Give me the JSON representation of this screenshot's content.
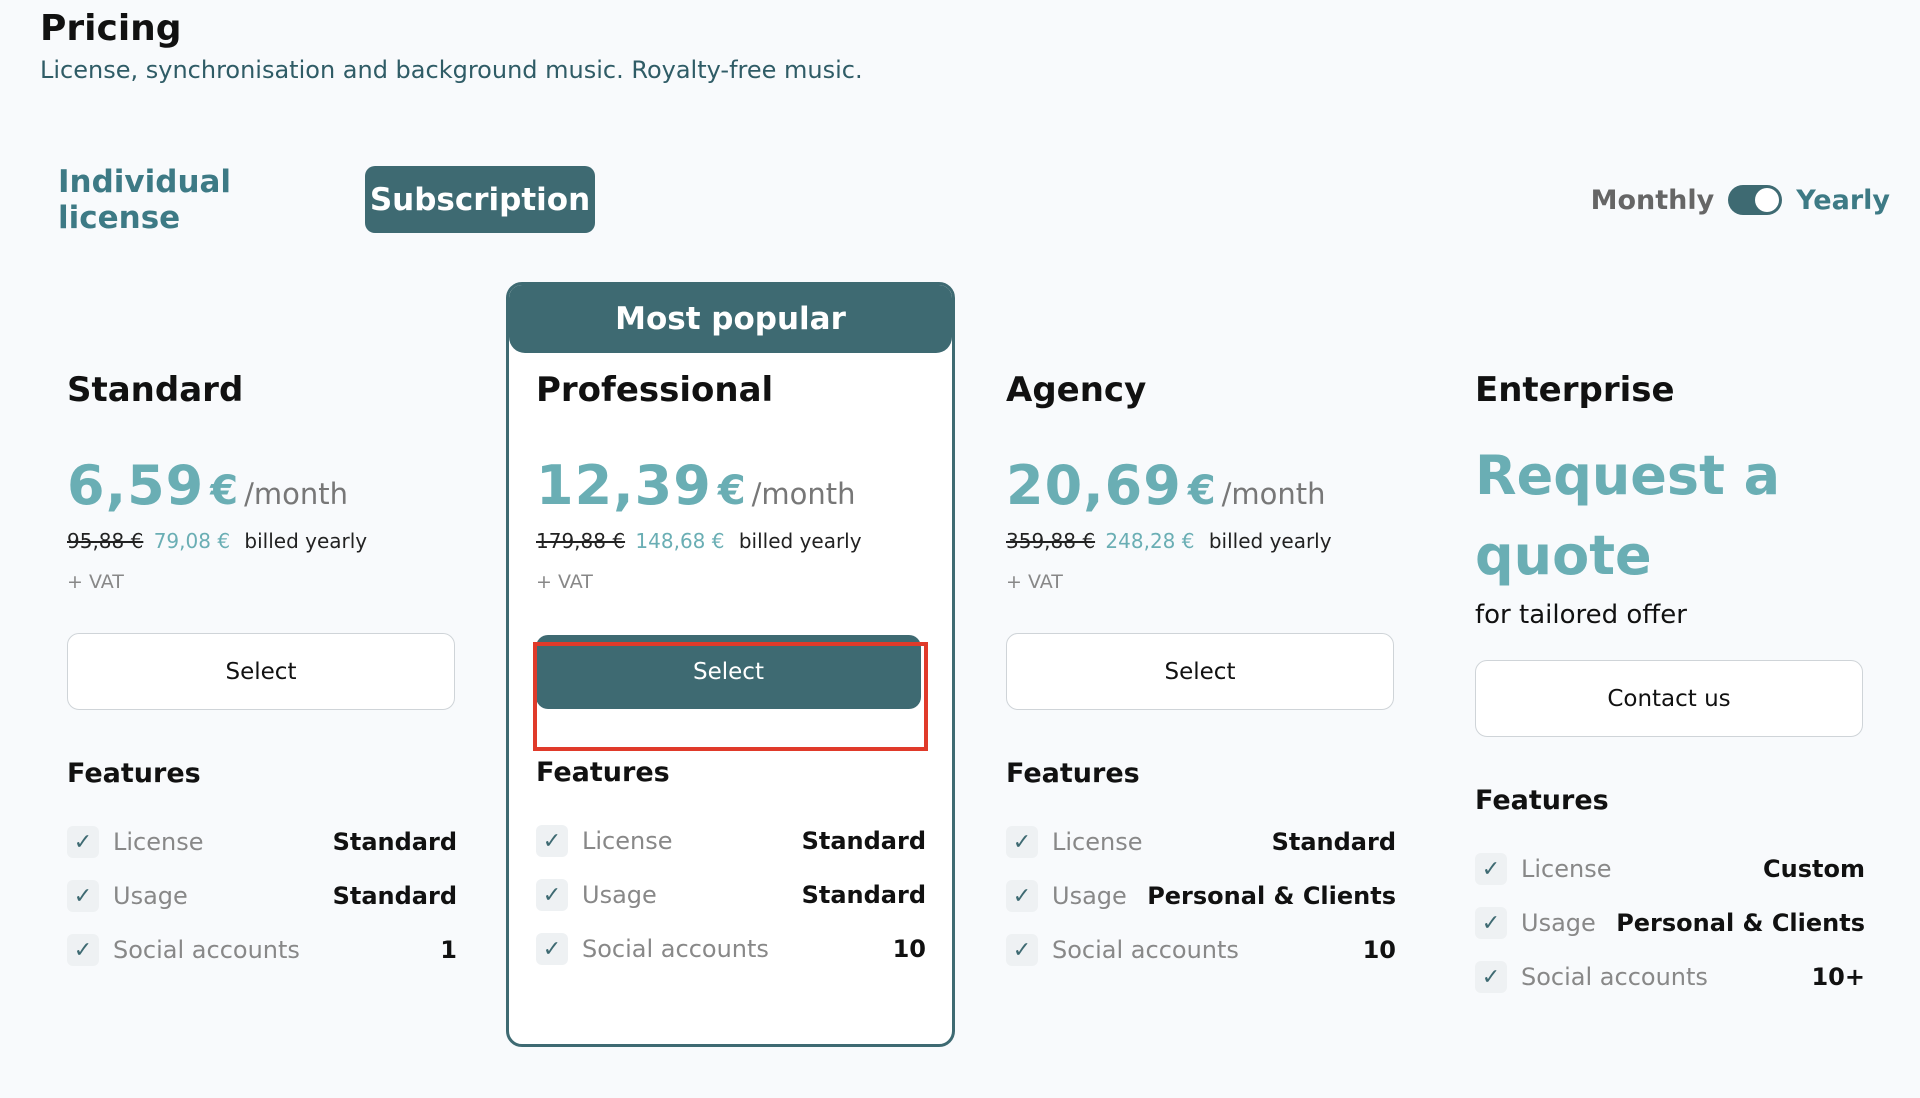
{
  "header": {
    "title": "Pricing",
    "subtitle": "License, synchronisation and background music. Royalty-free music."
  },
  "tabs": [
    {
      "label": "Individual license",
      "active": false
    },
    {
      "label": "Subscription",
      "active": true
    }
  ],
  "billing_toggle": {
    "monthly_label": "Monthly",
    "yearly_label": "Yearly",
    "selected": "Yearly"
  },
  "colors": {
    "accent": "#3e6a72",
    "price": "#6aaeb4",
    "highlight": "#e03a2a"
  },
  "popular_badge": "Most popular",
  "plans": [
    {
      "name": "Standard",
      "price": "6,59",
      "currency": "€",
      "per": "/month",
      "old_price": "95,88 €",
      "new_price": "79,08 €",
      "billed": "billed yearly",
      "vat": "+ VAT",
      "button": "Select",
      "features_title": "Features",
      "features": [
        {
          "label": "License",
          "value": "Standard"
        },
        {
          "label": "Usage",
          "value": "Standard"
        },
        {
          "label": "Social accounts",
          "value": "1"
        }
      ]
    },
    {
      "name": "Professional",
      "price": "12,39",
      "currency": "€",
      "per": "/month",
      "old_price": "179,88 €",
      "new_price": "148,68 €",
      "billed": "billed yearly",
      "vat": "+ VAT",
      "button": "Select",
      "features_title": "Features",
      "features": [
        {
          "label": "License",
          "value": "Standard"
        },
        {
          "label": "Usage",
          "value": "Standard"
        },
        {
          "label": "Social accounts",
          "value": "10"
        }
      ]
    },
    {
      "name": "Agency",
      "price": "20,69",
      "currency": "€",
      "per": "/month",
      "old_price": "359,88 €",
      "new_price": "248,28 €",
      "billed": "billed yearly",
      "vat": "+ VAT",
      "button": "Select",
      "features_title": "Features",
      "features": [
        {
          "label": "License",
          "value": "Standard"
        },
        {
          "label": "Usage",
          "value": "Personal & Clients"
        },
        {
          "label": "Social accounts",
          "value": "10"
        }
      ]
    },
    {
      "name": "Enterprise",
      "quote_line1": "Request a",
      "quote_line2": "quote",
      "quote_sub": "for tailored offer",
      "button": "Contact us",
      "features_title": "Features",
      "features": [
        {
          "label": "License",
          "value": "Custom"
        },
        {
          "label": "Usage",
          "value": "Personal & Clients"
        },
        {
          "label": "Social accounts",
          "value": "10+"
        }
      ]
    }
  ]
}
